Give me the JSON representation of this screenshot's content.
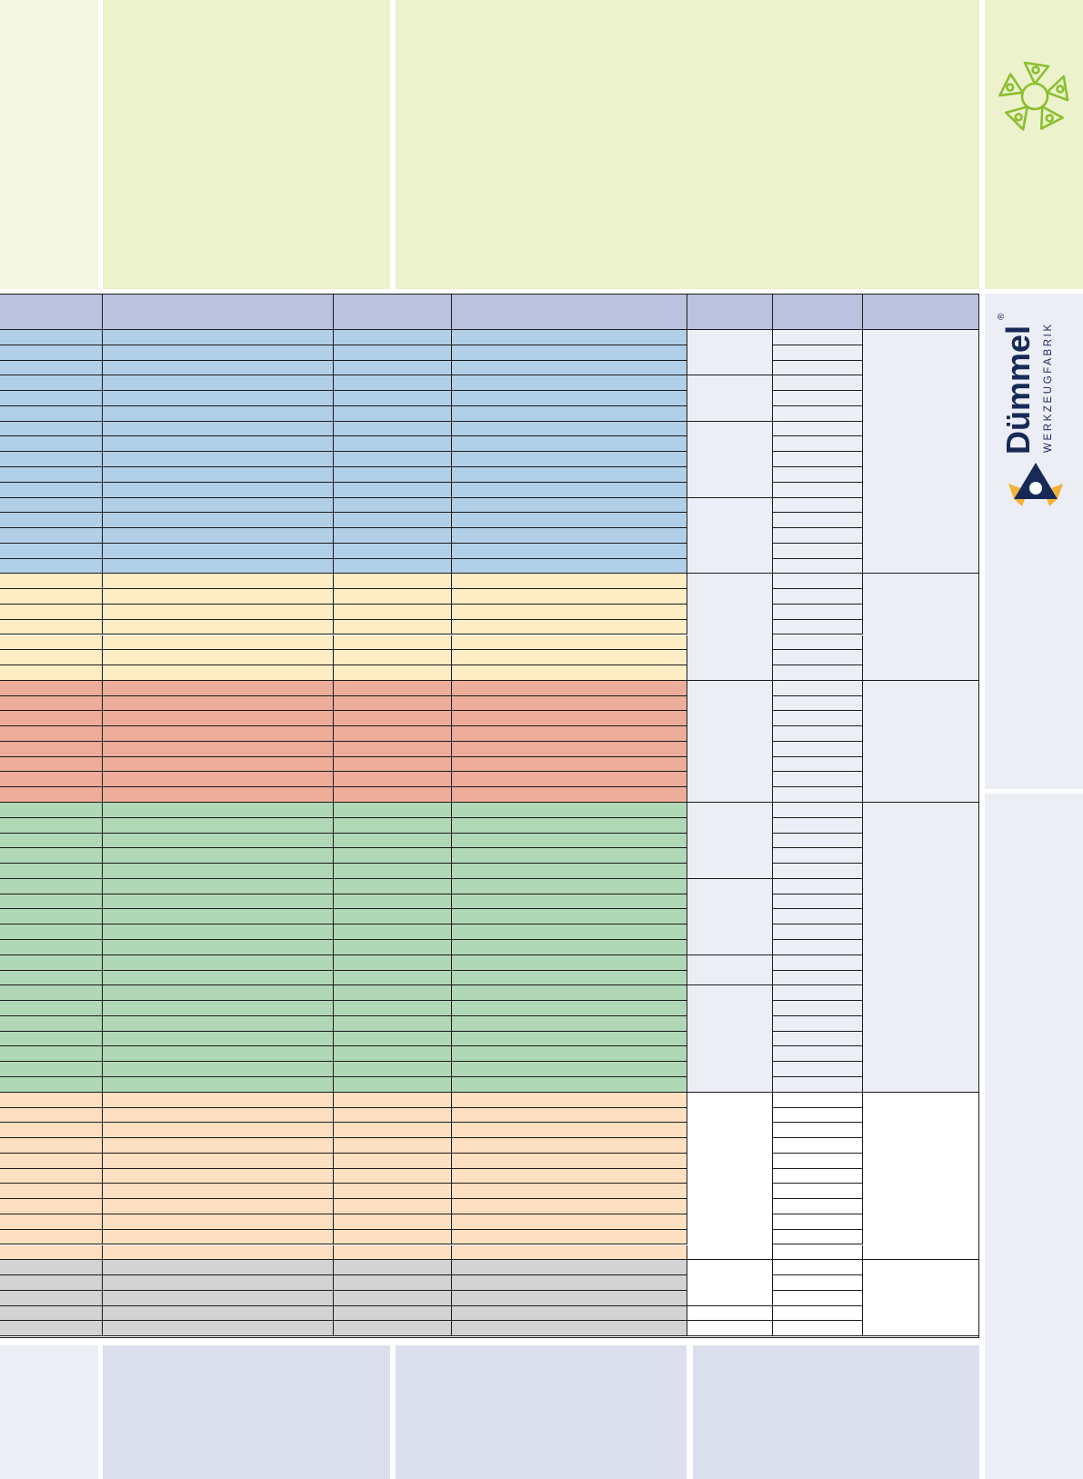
{
  "brand": {
    "name": "Dümmel",
    "tagline": "WERKZEUGFABRIK",
    "registered": "®",
    "navy": "#172a57",
    "accent": "#f1b236",
    "logo_green": "#8cbe2f"
  },
  "colors": {
    "top_band": "#ebf2cc",
    "top_left": "#f3f7e4",
    "right_band": "#eceef6",
    "bottom_band": "#dcdfee",
    "bottom_left": "#eceef6",
    "header": "#bbc2de",
    "value_cell": "#eceef6",
    "blank_cell": "#ffffff"
  },
  "table": {
    "column_count": 7,
    "groups": [
      {
        "color": "#b2cfe8",
        "rows": 16,
        "spans": [
          3,
          3,
          5,
          5
        ],
        "extra_blank_rows": 0
      },
      {
        "color": "#fdecc4",
        "rows": 7,
        "spans": [
          7
        ],
        "extra_blank_rows": 0
      },
      {
        "color": "#ecae9a",
        "rows": 8,
        "spans": [
          8
        ],
        "extra_blank_rows": 0
      },
      {
        "color": "#b1d8b6",
        "rows": 19,
        "spans": [
          5,
          5,
          2,
          7
        ],
        "extra_blank_rows": 0
      },
      {
        "color": "#fde0c1",
        "rows": 11,
        "spans": [
          11
        ],
        "extra_blank_rows": 0,
        "blank": true
      },
      {
        "color": "#d3d3d3",
        "rows": 3,
        "spans": [
          3
        ],
        "extra_blank_rows": 2,
        "blank": true
      }
    ]
  }
}
